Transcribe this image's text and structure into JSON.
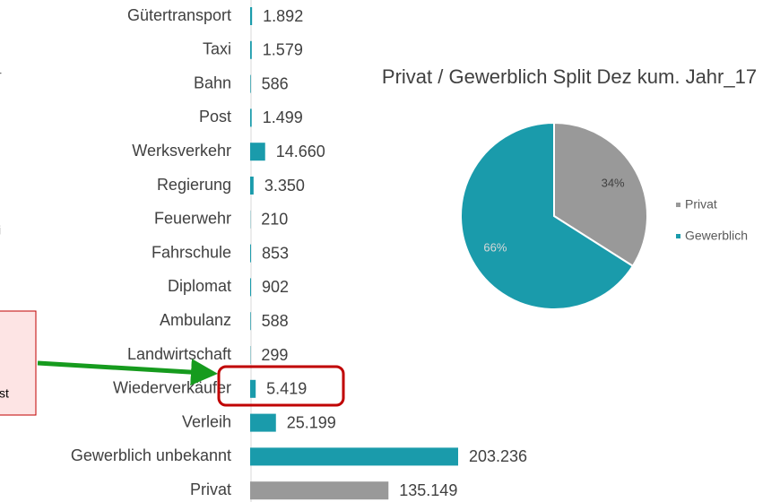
{
  "chart_data": [
    {
      "type": "bar",
      "orientation": "horizontal",
      "categories": [
        "Gütertransport",
        "Taxi",
        "Bahn",
        "Post",
        "Werksverkehr",
        "Regierung",
        "Feuerwehr",
        "Fahrschule",
        "Diplomat",
        "Ambulanz",
        "Landwirtschaft",
        "Wiederverkäufer",
        "Verleih",
        "Gewerblich unbekannt",
        "Privat"
      ],
      "values": [
        1892,
        1579,
        586,
        1499,
        14660,
        3350,
        210,
        853,
        902,
        588,
        299,
        5419,
        25199,
        203236,
        135149
      ],
      "value_labels": [
        "1.892",
        "1.579",
        "586",
        "1.499",
        "14.660",
        "3.350",
        "210",
        "853",
        "902",
        "588",
        "299",
        "5.419",
        "25.199",
        "203.236",
        "135.149"
      ],
      "colors": [
        "#1a9bab",
        "#1a9bab",
        "#1a9bab",
        "#1a9bab",
        "#1a9bab",
        "#1a9bab",
        "#1a9bab",
        "#1a9bab",
        "#1a9bab",
        "#1a9bab",
        "#1a9bab",
        "#1a9bab",
        "#1a9bab",
        "#1a9bab",
        "#999999"
      ]
    },
    {
      "type": "pie",
      "title": "Privat / Gewerblich Split Dez kum. Jahr_17",
      "categories": [
        "Privat",
        "Gewerblich"
      ],
      "values": [
        34,
        66
      ],
      "value_labels": [
        "34%",
        "66%"
      ],
      "colors": [
        "#999999",
        "#1a9bab"
      ],
      "legend": "right"
    }
  ],
  "annotations": {
    "clipped_texts": [
      "r",
      "i",
      "st"
    ]
  }
}
